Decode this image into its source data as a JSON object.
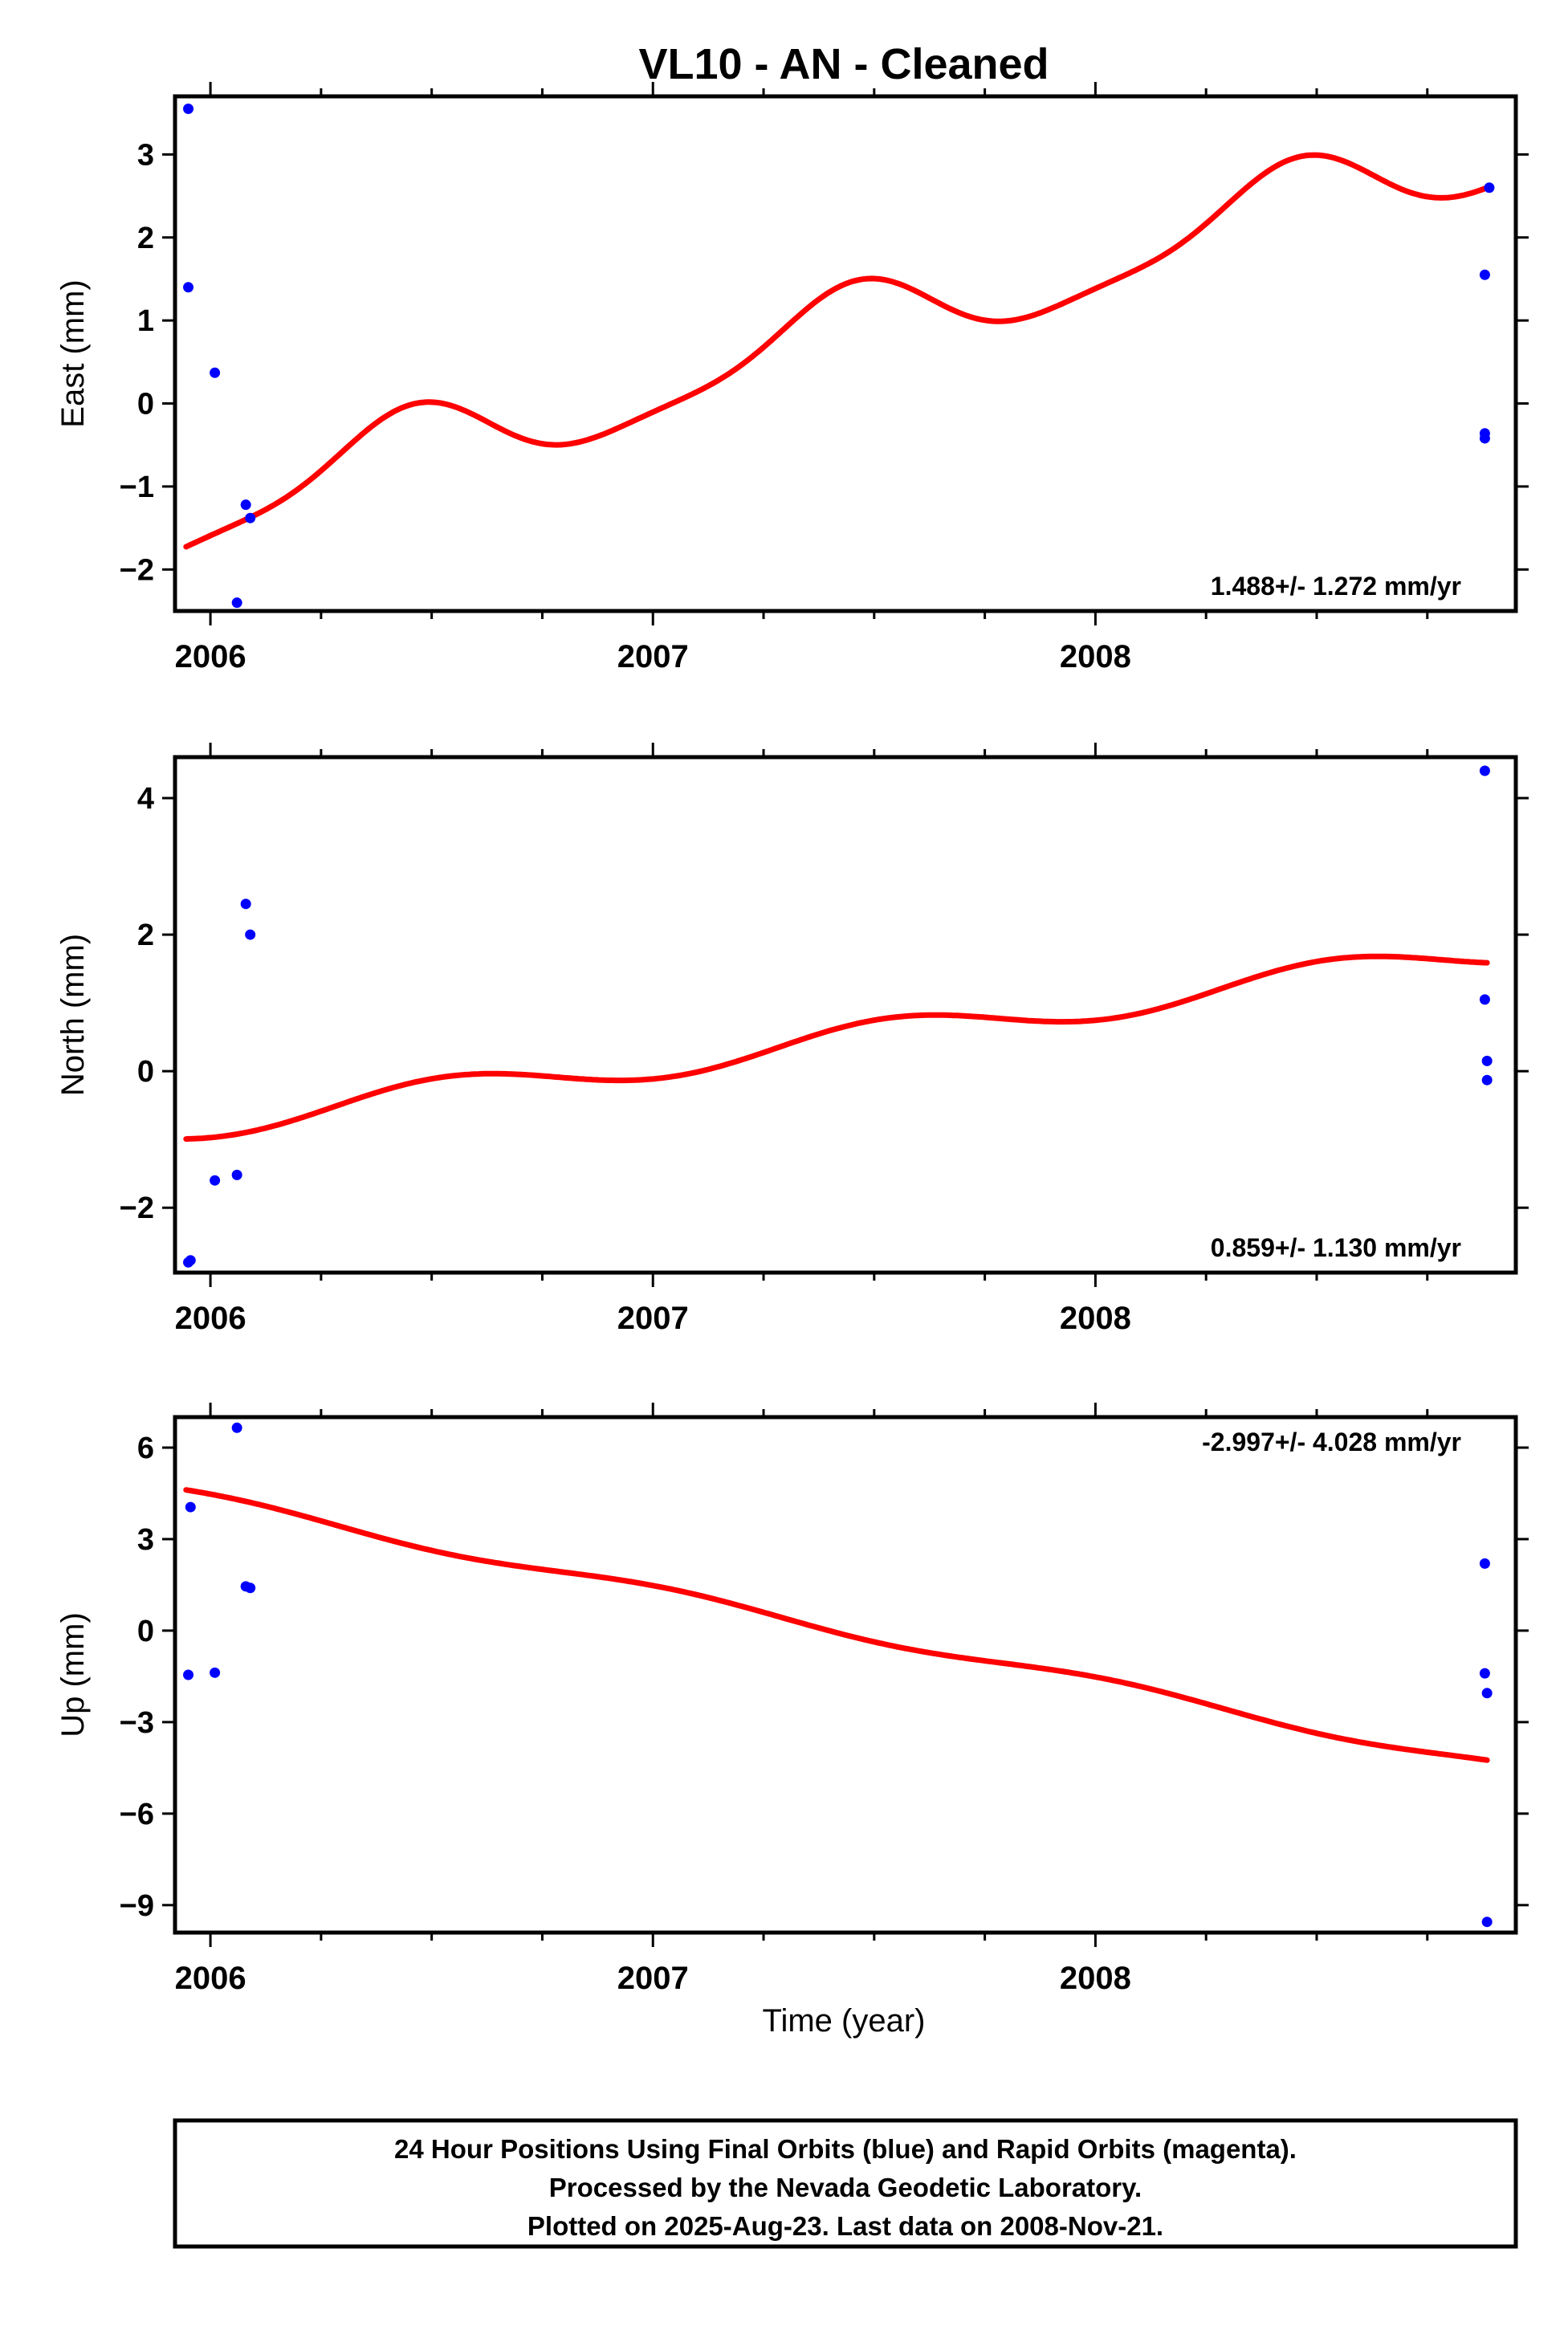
{
  "title": "VL10  - AN - Cleaned",
  "colors": {
    "final_orbits": "#0000ff",
    "fit_line": "#ff0000",
    "frame": "#000000"
  },
  "footer": {
    "line1": "24 Hour Positions Using Final Orbits (blue) and Rapid Orbits (magenta).",
    "line2": "Processed by the Nevada Geodetic Laboratory.",
    "line3": "Plotted on 2025-Aug-23. Last data on 2008-Nov-21."
  },
  "chart_data": [
    {
      "type": "scatter",
      "ylabel": "East (mm)",
      "xlabel": "",
      "rate_label": "1.488+/- 1.272 mm/yr",
      "xlim": [
        2005.92,
        2008.95
      ],
      "ylim": [
        -2.5,
        3.7
      ],
      "y_ticks": [
        -2,
        -1,
        0,
        1,
        2,
        3
      ],
      "y_tick_labels": [
        "−2",
        "−1",
        "0",
        "1",
        "2",
        "3"
      ],
      "x_ticks": [
        2006,
        2007,
        2008
      ],
      "x_tick_labels": [
        "2006",
        "2007",
        "2008"
      ],
      "points": {
        "x": [
          2005.95,
          2005.95,
          2006.01,
          2006.06,
          2006.08,
          2006.09,
          2008.88,
          2008.88,
          2008.88,
          2008.89
        ],
        "y": [
          3.55,
          1.4,
          0.37,
          -2.4,
          -1.22,
          -1.38,
          1.55,
          -0.36,
          -0.42,
          2.6
        ]
      },
      "fit": {
        "offset": -1.35,
        "slope": 1.488,
        "ref": 2005.95,
        "amp": 0.48,
        "phase": 4.85,
        "amp2": 0.12,
        "phase2": 1.2,
        "x_start": 2005.945,
        "x_end": 2008.885
      }
    },
    {
      "type": "scatter",
      "ylabel": "North (mm)",
      "xlabel": "",
      "rate_label": "0.859+/- 1.130 mm/yr",
      "xlim": [
        2005.92,
        2008.95
      ],
      "ylim": [
        -2.95,
        4.6
      ],
      "y_ticks": [
        -2,
        0,
        2,
        4
      ],
      "y_tick_labels": [
        "−2",
        "0",
        "2",
        "4"
      ],
      "x_ticks": [
        2006,
        2007,
        2008
      ],
      "x_tick_labels": [
        "2006",
        "2007",
        "2008"
      ],
      "points": {
        "x": [
          2005.95,
          2005.955,
          2006.01,
          2006.06,
          2006.08,
          2006.09,
          2008.88,
          2008.88,
          2008.885,
          2008.885
        ],
        "y": [
          -2.8,
          -2.77,
          -1.6,
          -1.52,
          2.45,
          2.0,
          4.4,
          1.05,
          0.15,
          -0.13
        ]
      },
      "fit": {
        "offset": -0.8,
        "slope": 0.859,
        "ref": 2005.95,
        "amp": 0.22,
        "phase": 4.2,
        "amp2": 0.0,
        "phase2": 0.0,
        "x_start": 2005.945,
        "x_end": 2008.885
      }
    },
    {
      "type": "scatter",
      "ylabel": "Up (mm)",
      "xlabel": "Time (year)",
      "rate_label": "-2.997+/- 4.028 mm/yr",
      "xlim": [
        2005.92,
        2008.95
      ],
      "ylim": [
        -9.9,
        7.0
      ],
      "y_ticks": [
        -9,
        -6,
        -3,
        0,
        3,
        6
      ],
      "y_tick_labels": [
        "−9",
        "−6",
        "−3",
        "0",
        "3",
        "6"
      ],
      "x_ticks": [
        2006,
        2007,
        2008
      ],
      "x_tick_labels": [
        "2006",
        "2007",
        "2008"
      ],
      "points": {
        "x": [
          2005.95,
          2005.955,
          2006.01,
          2006.06,
          2006.08,
          2006.09,
          2008.88,
          2008.88,
          2008.885,
          2008.885
        ],
        "y": [
          -1.45,
          4.05,
          -1.38,
          6.65,
          1.45,
          1.4,
          2.2,
          -1.4,
          -2.05,
          -9.55
        ]
      },
      "fit": {
        "offset": 4.45,
        "slope": -2.997,
        "ref": 2005.95,
        "amp": 0.18,
        "phase": 1.0,
        "amp2": 0.0,
        "phase2": 0.0,
        "x_start": 2005.945,
        "x_end": 2008.885
      }
    }
  ]
}
